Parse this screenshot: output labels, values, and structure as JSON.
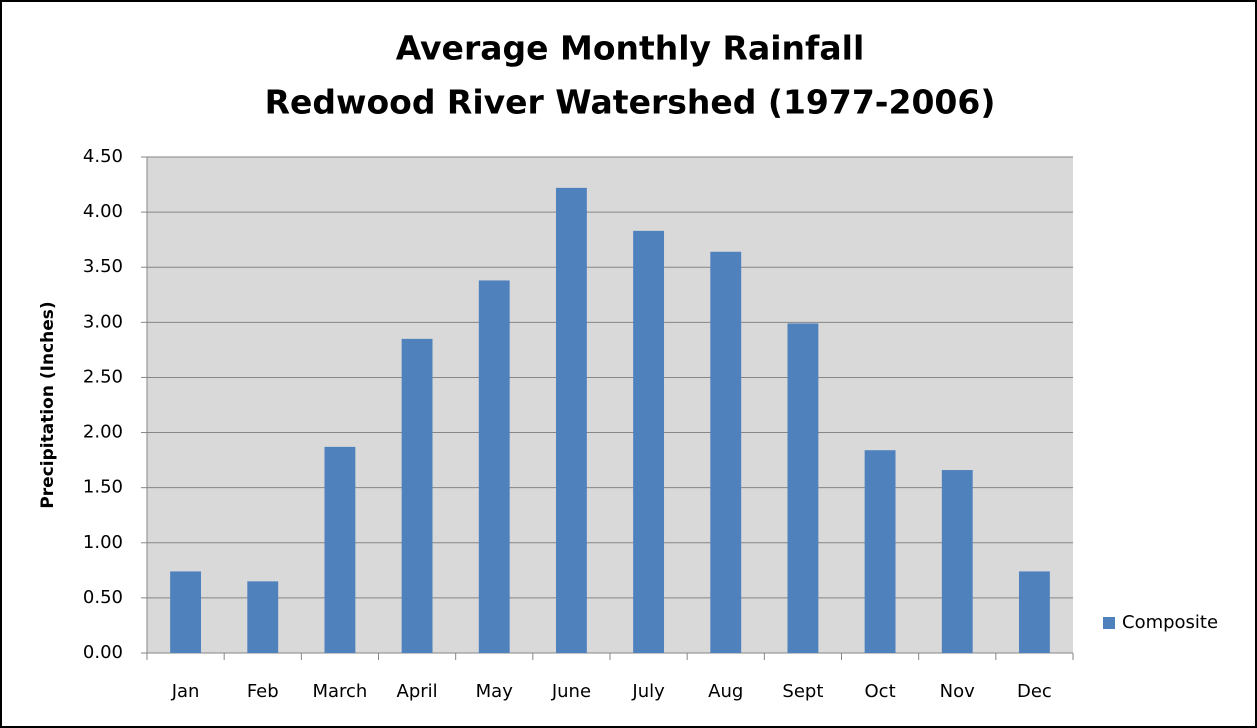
{
  "chart_data": {
    "type": "bar",
    "title": "Average Monthly Rainfall",
    "subtitle": "Redwood River Watershed (1977-2006)",
    "y_label": "Precipitation (Inches)",
    "categories": [
      "Jan",
      "Feb",
      "March",
      "April",
      "May",
      "June",
      "July",
      "Aug",
      "Sept",
      "Oct",
      "Nov",
      "Dec"
    ],
    "series": [
      {
        "name": "Composite",
        "color": "#4f81bd",
        "values": [
          0.74,
          0.65,
          1.87,
          2.85,
          3.38,
          4.22,
          3.83,
          3.64,
          2.99,
          1.84,
          1.66,
          0.74
        ]
      }
    ],
    "ylim": [
      0,
      4.5
    ],
    "yticks": [
      {
        "value": 0,
        "label": "0.00"
      },
      {
        "value": 0.5,
        "label": "0.50"
      },
      {
        "value": 1,
        "label": "1.00"
      },
      {
        "value": 1.5,
        "label": "1.50"
      },
      {
        "value": 2,
        "label": "2.00"
      },
      {
        "value": 2.5,
        "label": "2.50"
      },
      {
        "value": 3,
        "label": "3.00"
      },
      {
        "value": 3.5,
        "label": "3.50"
      },
      {
        "value": 4,
        "label": "4.00"
      },
      {
        "value": 4.5,
        "label": "4.50"
      }
    ],
    "grid": true,
    "legend": "right"
  }
}
